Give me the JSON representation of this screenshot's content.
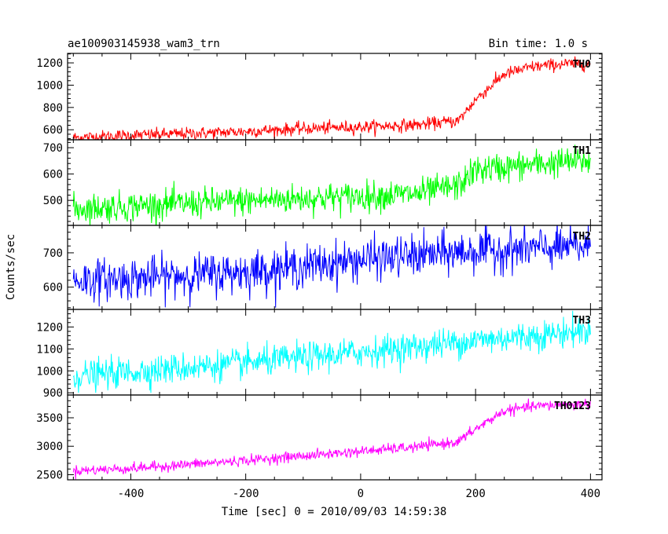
{
  "header": {
    "title": "ae100903145938_wam3_trn",
    "bin_time": "Bin time: 1.0 s"
  },
  "chart_data": {
    "type": "line",
    "title": "ae100903145938_wam3_trn",
    "subtitle": "Bin time: 1.0 s",
    "xlabel": "Time [sec] 0 = 2010/09/03 14:59:38",
    "ylabel": "Counts/sec",
    "xlim": [
      -510,
      420
    ],
    "x_ticks": [
      -400,
      -200,
      0,
      200,
      400
    ],
    "x_range_data": [
      -500,
      400
    ],
    "bin_time_s": 1.0,
    "grid": false,
    "legend": "none",
    "panels": [
      {
        "name": "TH0",
        "color": "#ff0000",
        "ylim": [
          510,
          1285
        ],
        "y_ticks": [
          600,
          800,
          1000,
          1200
        ],
        "noise_sd": 28,
        "series": {
          "x": [
            -500,
            -400,
            -300,
            -200,
            -100,
            0,
            100,
            170,
            200,
            250,
            300,
            350,
            400
          ],
          "y": [
            530,
            550,
            565,
            585,
            610,
            625,
            645,
            680,
            870,
            1100,
            1165,
            1190,
            1190
          ]
        }
      },
      {
        "name": "TH1",
        "color": "#00ff00",
        "ylim": [
          405,
          730
        ],
        "y_ticks": [
          500,
          600,
          700
        ],
        "noise_sd": 28,
        "series": {
          "x": [
            -500,
            -400,
            -300,
            -200,
            -100,
            0,
            100,
            170,
            200,
            250,
            300,
            350,
            400
          ],
          "y": [
            468,
            478,
            488,
            498,
            508,
            515,
            525,
            555,
            615,
            625,
            635,
            645,
            650
          ]
        }
      },
      {
        "name": "TH2",
        "color": "#0000ff",
        "ylim": [
          535,
          780
        ],
        "y_ticks": [
          600,
          700
        ],
        "noise_sd": 30,
        "series": {
          "x": [
            -500,
            -400,
            -300,
            -200,
            -100,
            0,
            100,
            200,
            300,
            400
          ],
          "y": [
            620,
            625,
            635,
            645,
            660,
            680,
            692,
            705,
            712,
            718
          ]
        }
      },
      {
        "name": "TH3",
        "color": "#00ffff",
        "ylim": [
          890,
          1280
        ],
        "y_ticks": [
          900,
          1000,
          1100,
          1200
        ],
        "noise_sd": 34,
        "series": {
          "x": [
            -500,
            -400,
            -300,
            -200,
            -100,
            0,
            100,
            200,
            300,
            400
          ],
          "y": [
            975,
            995,
            1015,
            1035,
            1060,
            1085,
            1110,
            1140,
            1160,
            1185
          ]
        }
      },
      {
        "name": "TH0123",
        "color": "#ff00ff",
        "ylim": [
          2410,
          3900
        ],
        "y_ticks": [
          2500,
          3000,
          3500
        ],
        "noise_sd": 45,
        "series": {
          "x": [
            -500,
            -400,
            -300,
            -200,
            -100,
            0,
            100,
            170,
            200,
            250,
            300,
            350,
            400
          ],
          "y": [
            2570,
            2610,
            2680,
            2750,
            2830,
            2910,
            2990,
            3080,
            3300,
            3620,
            3700,
            3730,
            3740
          ]
        }
      }
    ]
  }
}
